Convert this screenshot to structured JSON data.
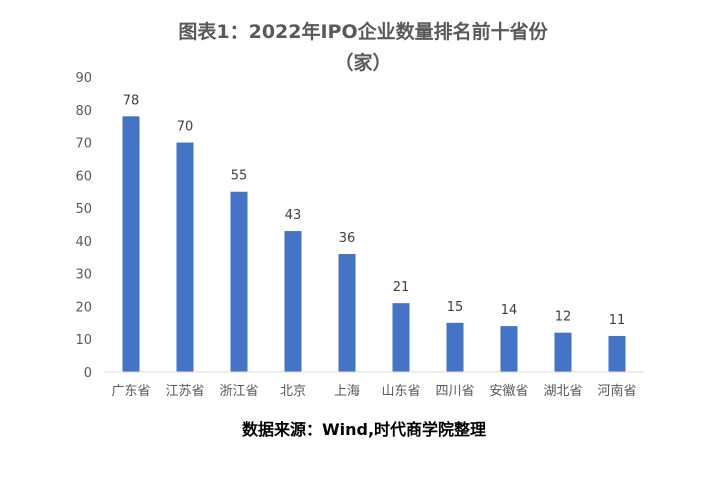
{
  "chart_data": {
    "type": "bar",
    "title_line1": "图表1：2022年IPO企业数量排名前十省份",
    "title_line2": "（家）",
    "categories": [
      "广东省",
      "江苏省",
      "浙江省",
      "北京",
      "上海",
      "山东省",
      "四川省",
      "安徽省",
      "湖北省",
      "河南省"
    ],
    "values": [
      78,
      70,
      55,
      43,
      36,
      21,
      15,
      14,
      12,
      11
    ],
    "ylim": [
      0,
      90
    ],
    "yticks": [
      0,
      10,
      20,
      30,
      40,
      50,
      60,
      70,
      80,
      90
    ],
    "bar_color": "#4472C4",
    "grid": false,
    "source": "数据来源：Wind,时代商学院整理"
  }
}
